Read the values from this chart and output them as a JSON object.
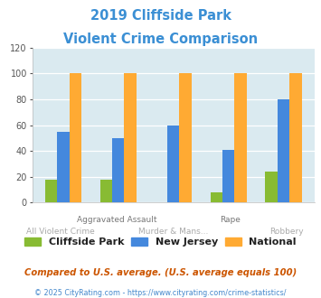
{
  "title_line1": "2019 Cliffside Park",
  "title_line2": "Violent Crime Comparison",
  "title_color": "#3b8fd4",
  "categories": [
    "All Violent Crime",
    "Aggravated Assault",
    "Murder & Mans...",
    "Rape",
    "Robbery"
  ],
  "cliffside_park": [
    18,
    18,
    0,
    8,
    24
  ],
  "new_jersey": [
    55,
    50,
    60,
    41,
    80
  ],
  "national": [
    100,
    100,
    100,
    100,
    100
  ],
  "color_cliffside": "#88bb33",
  "color_nj": "#4488dd",
  "color_national": "#ffaa33",
  "ylim": [
    0,
    120
  ],
  "yticks": [
    0,
    20,
    40,
    60,
    80,
    100,
    120
  ],
  "row1_labels": [
    "",
    "Aggravated Assault",
    "",
    "Rape",
    ""
  ],
  "row2_labels": [
    "All Violent Crime",
    "",
    "Murder & Mans...",
    "",
    "Robbery"
  ],
  "legend_labels": [
    "Cliffside Park",
    "New Jersey",
    "National"
  ],
  "footnote1": "Compared to U.S. average. (U.S. average equals 100)",
  "footnote2": "© 2025 CityRating.com - https://www.cityrating.com/crime-statistics/",
  "footnote1_color": "#cc5500",
  "footnote2_color": "#4488cc",
  "bg_color": "#daeaf0",
  "bar_width": 0.22
}
